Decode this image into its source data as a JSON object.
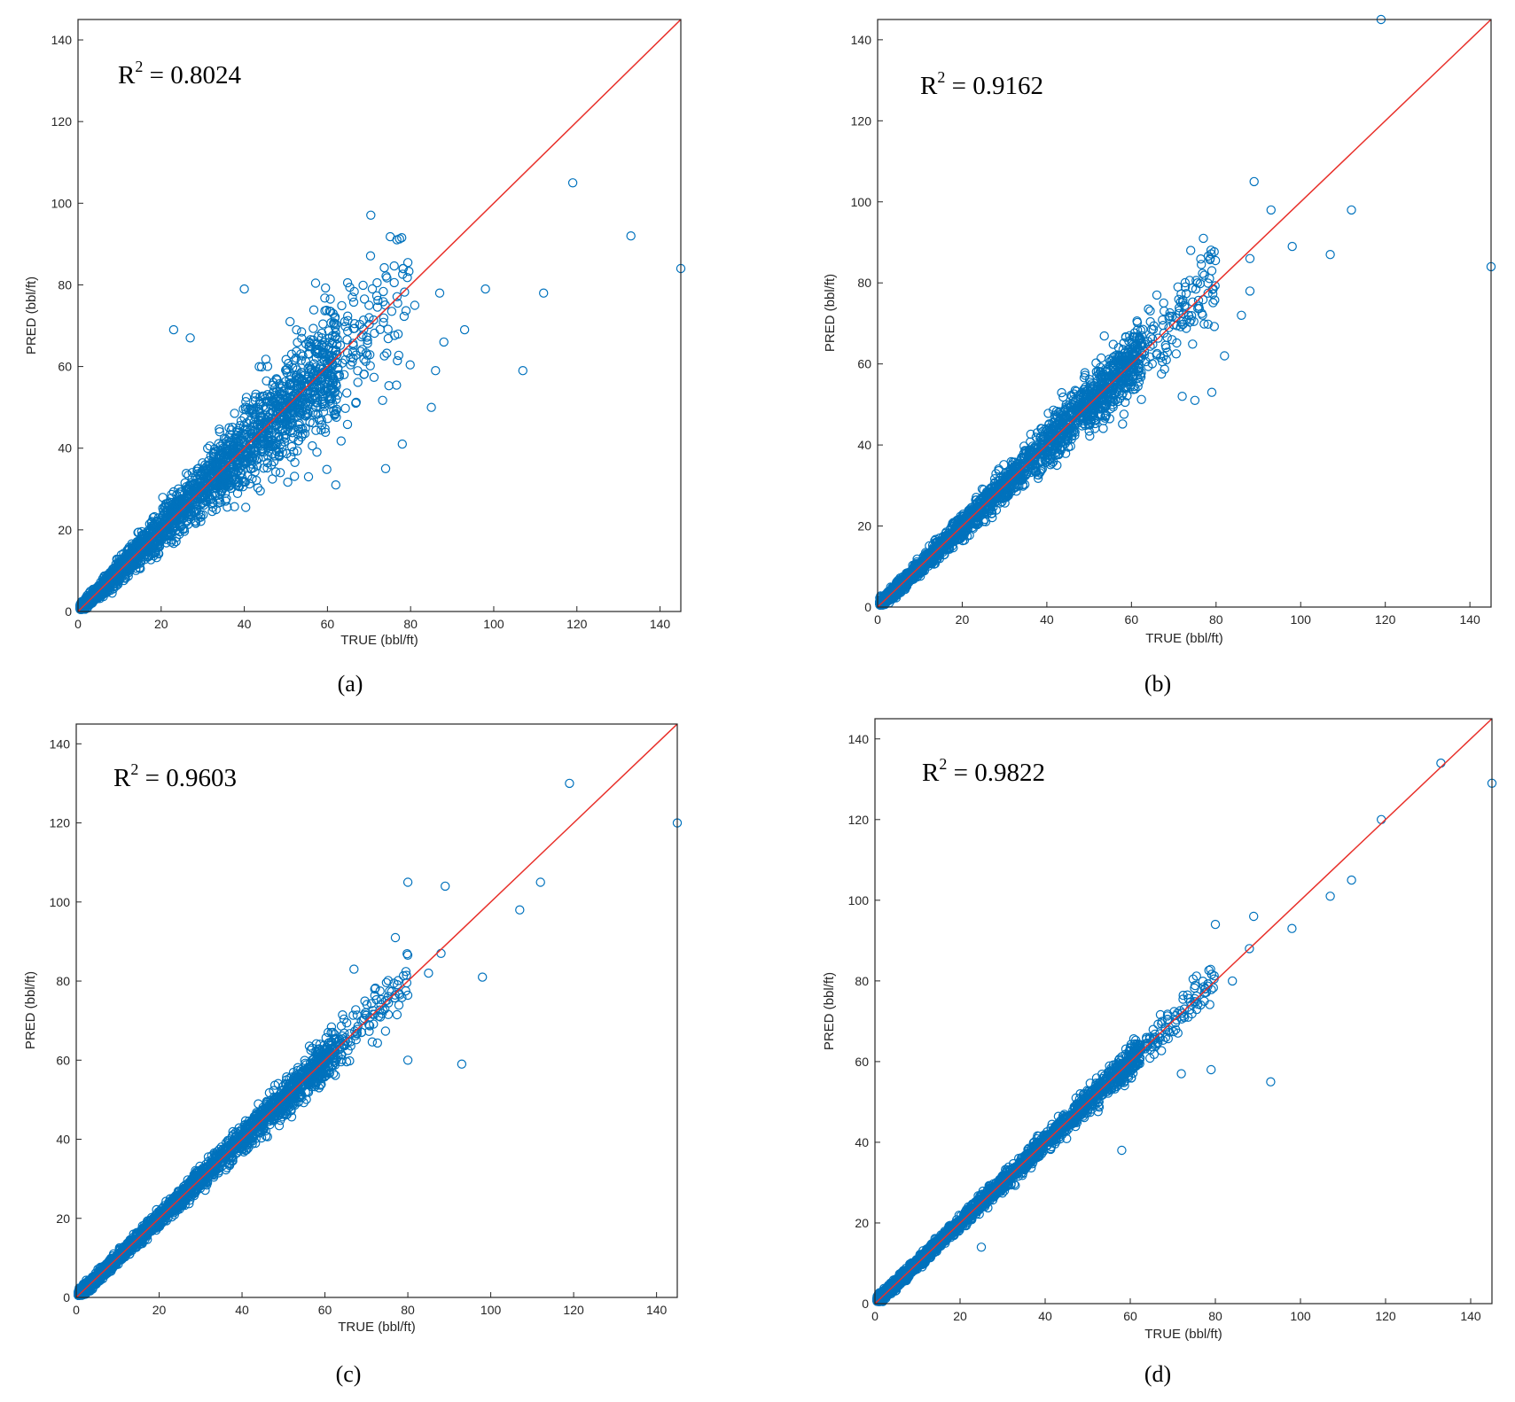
{
  "colors": {
    "marker": "#0072bd",
    "reference_line": "#e8302a",
    "axis": "#262626"
  },
  "chart_data": [
    {
      "panel": "a",
      "type": "scatter",
      "caption": "(a)",
      "r2_prefix": "R",
      "r2_exp": "2",
      "r2_value": " = 0.8024",
      "xlabel": "TRUE (bbl/ft)",
      "ylabel": "PRED (bbl/ft)",
      "xlim": [
        0,
        145
      ],
      "ylim": [
        0,
        145
      ],
      "xticks": [
        0,
        20,
        40,
        60,
        80,
        100,
        120,
        140
      ],
      "yticks": [
        0,
        20,
        40,
        60,
        80,
        100,
        120,
        140
      ],
      "reference_line": [
        [
          0,
          0
        ],
        [
          145,
          145
        ]
      ],
      "noise": 0.2,
      "seed": 11,
      "points": [
        [
          119,
          105
        ],
        [
          133,
          92
        ],
        [
          145,
          84
        ],
        [
          107,
          59
        ],
        [
          112,
          78
        ],
        [
          98,
          79
        ],
        [
          93,
          69
        ],
        [
          88,
          66
        ],
        [
          87,
          78
        ],
        [
          40,
          79
        ],
        [
          23,
          69
        ],
        [
          27,
          67
        ],
        [
          66,
          77
        ],
        [
          70,
          75
        ],
        [
          62,
          31
        ],
        [
          74,
          35
        ],
        [
          78,
          41
        ],
        [
          85,
          50
        ],
        [
          81,
          75
        ],
        [
          86,
          59
        ],
        [
          64,
          58
        ],
        [
          51,
          71
        ]
      ]
    },
    {
      "panel": "b",
      "type": "scatter",
      "caption": "(b)",
      "r2_prefix": "R",
      "r2_exp": "2",
      "r2_value": " = 0.9162",
      "xlabel": "TRUE (bbl/ft)",
      "ylabel": "PRED (bbl/ft)",
      "xlim": [
        0,
        145
      ],
      "ylim": [
        0,
        145
      ],
      "xticks": [
        0,
        20,
        40,
        60,
        80,
        100,
        120,
        140
      ],
      "yticks": [
        0,
        20,
        40,
        60,
        80,
        100,
        120,
        140
      ],
      "reference_line": [
        [
          0,
          0
        ],
        [
          145,
          145
        ]
      ],
      "noise": 0.11,
      "seed": 23,
      "points": [
        [
          119,
          145
        ],
        [
          145,
          84
        ],
        [
          89,
          105
        ],
        [
          93,
          98
        ],
        [
          112,
          98
        ],
        [
          98,
          89
        ],
        [
          107,
          87
        ],
        [
          88,
          86
        ],
        [
          74,
          88
        ],
        [
          77,
          91
        ],
        [
          79,
          83
        ],
        [
          88,
          78
        ],
        [
          86,
          72
        ],
        [
          82,
          62
        ],
        [
          79,
          53
        ],
        [
          75,
          51
        ],
        [
          72,
          52
        ],
        [
          66,
          77
        ],
        [
          71,
          79
        ]
      ]
    },
    {
      "panel": "c",
      "type": "scatter",
      "caption": "(c)",
      "r2_prefix": "R",
      "r2_exp": "2",
      "r2_value": " = 0.9603",
      "xlabel": "TRUE (bbl/ft)",
      "ylabel": "PRED (bbl/ft)",
      "xlim": [
        0,
        145
      ],
      "ylim": [
        0,
        145
      ],
      "xticks": [
        0,
        20,
        40,
        60,
        80,
        100,
        120,
        140
      ],
      "yticks": [
        0,
        20,
        40,
        60,
        80,
        100,
        120,
        140
      ],
      "reference_line": [
        [
          0,
          0
        ],
        [
          145,
          145
        ]
      ],
      "noise": 0.07,
      "seed": 37,
      "points": [
        [
          119,
          130
        ],
        [
          145,
          120
        ],
        [
          80,
          105
        ],
        [
          89,
          104
        ],
        [
          112,
          105
        ],
        [
          107,
          98
        ],
        [
          77,
          91
        ],
        [
          98,
          81
        ],
        [
          93,
          59
        ],
        [
          80,
          60
        ],
        [
          88,
          87
        ],
        [
          85,
          82
        ],
        [
          67,
          83
        ],
        [
          72,
          78
        ]
      ]
    },
    {
      "panel": "d",
      "type": "scatter",
      "caption": "(d)",
      "r2_prefix": "R",
      "r2_exp": "2",
      "r2_value": " = 0.9822",
      "xlabel": "TRUE (bbl/ft)",
      "ylabel": "PRED (bbl/ft)",
      "xlim": [
        0,
        145
      ],
      "ylim": [
        0,
        145
      ],
      "xticks": [
        0,
        20,
        40,
        60,
        80,
        100,
        120,
        140
      ],
      "yticks": [
        0,
        20,
        40,
        60,
        80,
        100,
        120,
        140
      ],
      "reference_line": [
        [
          0,
          0
        ],
        [
          145,
          145
        ]
      ],
      "noise": 0.045,
      "seed": 53,
      "points": [
        [
          133,
          134
        ],
        [
          145,
          129
        ],
        [
          119,
          120
        ],
        [
          112,
          105
        ],
        [
          107,
          101
        ],
        [
          98,
          93
        ],
        [
          89,
          96
        ],
        [
          80,
          94
        ],
        [
          93,
          55
        ],
        [
          79,
          58
        ],
        [
          58,
          38
        ],
        [
          72,
          57
        ],
        [
          25,
          14
        ],
        [
          88,
          88
        ],
        [
          84,
          80
        ]
      ]
    }
  ]
}
